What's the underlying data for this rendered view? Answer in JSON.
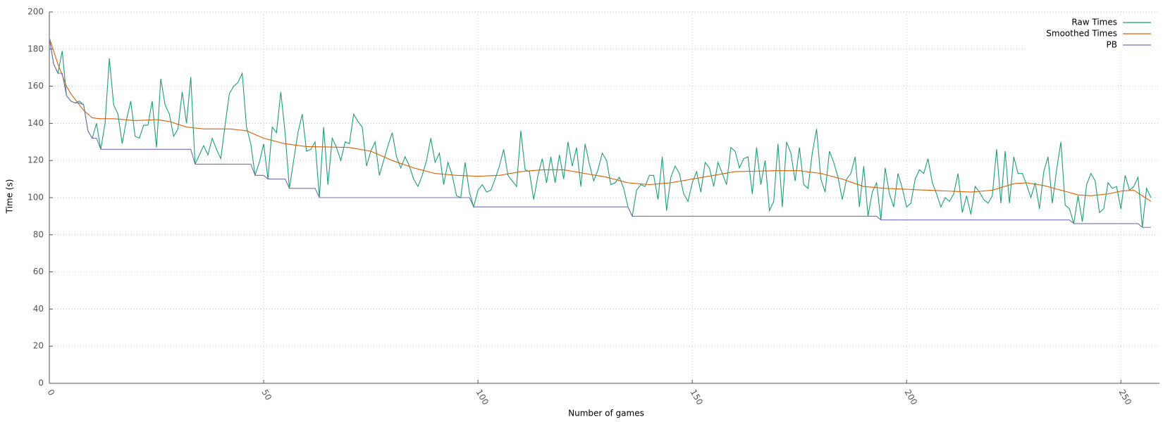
{
  "chart_data": {
    "type": "line",
    "x_label": "Number of games",
    "y_label": "Time (s)",
    "xlim": [
      0,
      259
    ],
    "ylim": [
      0,
      200
    ],
    "xticks": [
      0,
      50,
      100,
      150,
      200,
      250
    ],
    "yticks": [
      0,
      20,
      40,
      60,
      80,
      100,
      120,
      140,
      160,
      180,
      200
    ],
    "grid": true,
    "legend": "top-right",
    "x": [
      0,
      1,
      2,
      3,
      4,
      5,
      6,
      7,
      8,
      9,
      10,
      11,
      12,
      13,
      14,
      15,
      16,
      17,
      18,
      19,
      20,
      21,
      22,
      23,
      24,
      25,
      26,
      27,
      28,
      29,
      30,
      31,
      32,
      33,
      34,
      35,
      36,
      37,
      38,
      39,
      40,
      41,
      42,
      43,
      44,
      45,
      46,
      47,
      48,
      49,
      50,
      51,
      52,
      53,
      54,
      55,
      56,
      57,
      58,
      59,
      60,
      61,
      62,
      63,
      64,
      65,
      66,
      67,
      68,
      69,
      70,
      71,
      72,
      73,
      74,
      75,
      76,
      77,
      78,
      79,
      80,
      81,
      82,
      83,
      84,
      85,
      86,
      87,
      88,
      89,
      90,
      91,
      92,
      93,
      94,
      95,
      96,
      97,
      98,
      99,
      100,
      101,
      102,
      103,
      104,
      105,
      106,
      107,
      108,
      109,
      110,
      111,
      112,
      113,
      114,
      115,
      116,
      117,
      118,
      119,
      120,
      121,
      122,
      123,
      124,
      125,
      126,
      127,
      128,
      129,
      130,
      131,
      132,
      133,
      134,
      135,
      136,
      137,
      138,
      139,
      140,
      141,
      142,
      143,
      144,
      145,
      146,
      147,
      148,
      149,
      150,
      151,
      152,
      153,
      154,
      155,
      156,
      157,
      158,
      159,
      160,
      161,
      162,
      163,
      164,
      165,
      166,
      167,
      168,
      169,
      170,
      171,
      172,
      173,
      174,
      175,
      176,
      177,
      178,
      179,
      180,
      181,
      182,
      183,
      184,
      185,
      186,
      187,
      188,
      189,
      190,
      191,
      192,
      193,
      194,
      195,
      196,
      197,
      198,
      199,
      200,
      201,
      202,
      203,
      204,
      205,
      206,
      207,
      208,
      209,
      210,
      211,
      212,
      213,
      214,
      215,
      216,
      217,
      218,
      219,
      220,
      221,
      222,
      223,
      224,
      225,
      226,
      227,
      228,
      229,
      230,
      231,
      232,
      233,
      234,
      235,
      236,
      237,
      238,
      239,
      240,
      241,
      242,
      243,
      244,
      245,
      246,
      247,
      248,
      249,
      250,
      251,
      252,
      253,
      254,
      255,
      256,
      257
    ],
    "series": [
      {
        "name": "Raw Times",
        "color": "#1b9e77",
        "values": [
          186,
          172,
          167,
          179,
          155,
          152,
          151,
          152,
          150,
          136,
          132,
          140,
          126,
          140,
          175,
          150,
          145,
          129,
          142,
          152,
          133,
          132,
          139,
          139,
          152,
          127,
          164,
          150,
          145,
          133,
          137,
          157,
          140,
          165,
          118,
          123,
          128,
          123,
          132,
          126,
          121,
          139,
          156,
          160,
          162,
          167,
          138,
          129,
          112,
          119,
          129,
          110,
          138,
          135,
          157,
          135,
          105,
          120,
          135,
          145,
          125,
          126,
          130,
          100,
          138,
          107,
          132,
          127,
          120,
          130,
          129,
          145,
          141,
          138,
          117,
          125,
          130,
          112,
          120,
          128,
          135,
          122,
          116,
          122,
          117,
          110,
          106,
          112,
          120,
          132,
          119,
          124,
          107,
          119,
          112,
          101,
          100,
          119,
          103,
          95,
          104,
          107,
          103,
          104,
          110,
          117,
          126,
          112,
          109,
          106,
          136,
          115,
          114,
          99,
          112,
          121,
          108,
          122,
          108,
          123,
          110,
          130,
          117,
          127,
          106,
          129,
          118,
          109,
          115,
          124,
          120,
          107,
          108,
          111,
          105,
          95,
          90,
          104,
          107,
          106,
          112,
          112,
          99,
          122,
          93,
          111,
          117,
          113,
          102,
          98,
          108,
          114,
          103,
          119,
          116,
          106,
          119,
          113,
          107,
          127,
          125,
          116,
          121,
          122,
          102,
          127,
          107,
          120,
          93,
          98,
          129,
          95,
          130,
          124,
          109,
          127,
          107,
          105,
          124,
          137,
          110,
          103,
          125,
          119,
          111,
          99,
          110,
          113,
          122,
          95,
          117,
          90,
          103,
          108,
          88,
          116,
          102,
          95,
          113,
          105,
          95,
          97,
          110,
          115,
          113,
          121,
          108,
          102,
          95,
          100,
          98,
          102,
          113,
          92,
          101,
          91,
          106,
          103,
          99,
          97,
          101,
          126,
          97,
          125,
          97,
          122,
          113,
          113,
          107,
          100,
          108,
          94,
          114,
          122,
          97,
          115,
          130,
          96,
          94,
          86,
          101,
          87,
          107,
          113,
          109,
          92,
          94,
          108,
          105,
          106,
          94,
          112,
          104,
          106,
          111,
          84,
          105,
          100
        ]
      },
      {
        "name": "Smoothed Times",
        "color": "#d95f02",
        "values": [
          186,
          179,
          172,
          166,
          160,
          156,
          153,
          150,
          147,
          145,
          143,
          142.7,
          142.5,
          142.5,
          142.5,
          142.5,
          142.3,
          142.1,
          141.9,
          141.7,
          141.5,
          141.6,
          141.7,
          141.8,
          141.9,
          142,
          141.7,
          141.3,
          141,
          140.3,
          139.5,
          138.8,
          138,
          137.8,
          137.5,
          137.3,
          137,
          137,
          137,
          137,
          137,
          137,
          137,
          136.8,
          136.5,
          136.3,
          136,
          135,
          134,
          133,
          132,
          131.4,
          130.8,
          130.2,
          129.6,
          129,
          128.7,
          128.4,
          128.1,
          127.8,
          127.5,
          127.5,
          127.4,
          127.4,
          127.3,
          127.3,
          127.2,
          127.2,
          127.1,
          127.1,
          127,
          126.6,
          126.2,
          125.8,
          125.4,
          125,
          124,
          123,
          122,
          121,
          120,
          119.2,
          118.4,
          117.6,
          116.8,
          116,
          115.4,
          114.8,
          114.2,
          113.6,
          113,
          112.8,
          112.6,
          112.4,
          112.2,
          112,
          111.9,
          111.8,
          111.7,
          111.6,
          111.5,
          111.6,
          111.7,
          111.8,
          111.9,
          112,
          112.4,
          112.8,
          113.2,
          113.6,
          114,
          114.2,
          114.4,
          114.6,
          114.8,
          115,
          115,
          115,
          115,
          115,
          115,
          114.6,
          114.2,
          113.8,
          113.4,
          113,
          112.6,
          112.2,
          111.8,
          111.4,
          111,
          110.4,
          109.8,
          109.2,
          108.6,
          108,
          107.8,
          107.6,
          107.4,
          107.2,
          107,
          107.2,
          107.4,
          107.6,
          107.8,
          108,
          108.4,
          108.8,
          109.2,
          109.6,
          110,
          110.4,
          110.8,
          111.2,
          111.6,
          112,
          112.4,
          112.8,
          113.2,
          113.6,
          114,
          114.1,
          114.1,
          114.2,
          114.2,
          114.3,
          114.3,
          114.4,
          114.4,
          114.5,
          114.5,
          114.5,
          114.5,
          114.5,
          114.5,
          114.5,
          114.2,
          113.9,
          113.6,
          113.3,
          113,
          112.4,
          111.8,
          111.2,
          110.6,
          110,
          109.2,
          108.4,
          107.6,
          106.8,
          106,
          105.8,
          105.6,
          105.4,
          105.2,
          105,
          104.9,
          104.8,
          104.7,
          104.6,
          104.5,
          104.4,
          104.3,
          104.2,
          104.1,
          104,
          103.9,
          103.8,
          103.7,
          103.6,
          103.5,
          103.4,
          103.3,
          103.2,
          103.1,
          103,
          103.2,
          103.4,
          103.6,
          103.8,
          104,
          104.7,
          105.4,
          106.1,
          106.8,
          107.5,
          107.7,
          107.8,
          108,
          107.6,
          107.3,
          106.9,
          106.5,
          105.9,
          105.3,
          104.6,
          104,
          103.4,
          102.8,
          102.1,
          101.5,
          101.3,
          101.2,
          101,
          101.3,
          101.5,
          101.8,
          102,
          102.5,
          103,
          103.5,
          103.7,
          103.8,
          104,
          102.5,
          101,
          99.5,
          98
        ]
      },
      {
        "name": "PB",
        "color": "#7570b3",
        "values": [
          186,
          172,
          167,
          167,
          155,
          152,
          151,
          151,
          150,
          136,
          132,
          132,
          126,
          126,
          126,
          126,
          126,
          126,
          126,
          126,
          126,
          126,
          126,
          126,
          126,
          126,
          126,
          126,
          126,
          126,
          126,
          126,
          126,
          126,
          118,
          118,
          118,
          118,
          118,
          118,
          118,
          118,
          118,
          118,
          118,
          118,
          118,
          118,
          112,
          112,
          112,
          110,
          110,
          110,
          110,
          110,
          105,
          105,
          105,
          105,
          105,
          105,
          105,
          100,
          100,
          100,
          100,
          100,
          100,
          100,
          100,
          100,
          100,
          100,
          100,
          100,
          100,
          100,
          100,
          100,
          100,
          100,
          100,
          100,
          100,
          100,
          100,
          100,
          100,
          100,
          100,
          100,
          100,
          100,
          100,
          100,
          100,
          100,
          100,
          95,
          95,
          95,
          95,
          95,
          95,
          95,
          95,
          95,
          95,
          95,
          95,
          95,
          95,
          95,
          95,
          95,
          95,
          95,
          95,
          95,
          95,
          95,
          95,
          95,
          95,
          95,
          95,
          95,
          95,
          95,
          95,
          95,
          95,
          95,
          95,
          95,
          90,
          90,
          90,
          90,
          90,
          90,
          90,
          90,
          90,
          90,
          90,
          90,
          90,
          90,
          90,
          90,
          90,
          90,
          90,
          90,
          90,
          90,
          90,
          90,
          90,
          90,
          90,
          90,
          90,
          90,
          90,
          90,
          90,
          90,
          90,
          90,
          90,
          90,
          90,
          90,
          90,
          90,
          90,
          90,
          90,
          90,
          90,
          90,
          90,
          90,
          90,
          90,
          90,
          90,
          90,
          90,
          90,
          90,
          88,
          88,
          88,
          88,
          88,
          88,
          88,
          88,
          88,
          88,
          88,
          88,
          88,
          88,
          88,
          88,
          88,
          88,
          88,
          88,
          88,
          88,
          88,
          88,
          88,
          88,
          88,
          88,
          88,
          88,
          88,
          88,
          88,
          88,
          88,
          88,
          88,
          88,
          88,
          88,
          88,
          88,
          88,
          88,
          88,
          86,
          86,
          86,
          86,
          86,
          86,
          86,
          86,
          86,
          86,
          86,
          86,
          86,
          86,
          86,
          86,
          84,
          84,
          84
        ]
      }
    ]
  }
}
